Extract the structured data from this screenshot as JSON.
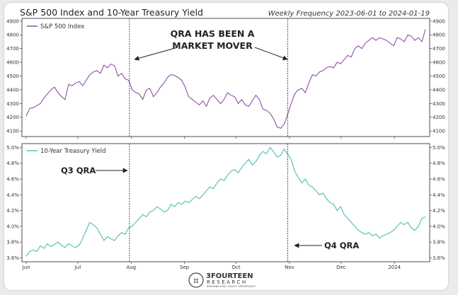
{
  "header": {
    "title": "S&P 500 Index and 10-Year Treasury Yield",
    "meta": "Weekly Frequency 2023-06-01 to 2024-01-19"
  },
  "colors": {
    "spx": "#8c4fa8",
    "yield": "#4dbdb3",
    "frame": "#222222",
    "annotation": "#222222"
  },
  "chart_data": [
    {
      "type": "line",
      "title": "S&P 500 Index and 10-Year Treasury Yield",
      "panel": "top",
      "series": [
        {
          "name": "S&P 500 Index",
          "values": [
            4210,
            4265,
            4270,
            4285,
            4300,
            4340,
            4370,
            4400,
            4420,
            4380,
            4350,
            4330,
            4440,
            4430,
            4450,
            4460,
            4430,
            4470,
            4510,
            4530,
            4540,
            4520,
            4580,
            4560,
            4588,
            4575,
            4500,
            4520,
            4480,
            4470,
            4400,
            4380,
            4370,
            4330,
            4400,
            4410,
            4350,
            4380,
            4420,
            4450,
            4490,
            4510,
            4505,
            4490,
            4470,
            4420,
            4350,
            4330,
            4310,
            4290,
            4320,
            4280,
            4340,
            4360,
            4330,
            4300,
            4330,
            4380,
            4360,
            4350,
            4300,
            4330,
            4290,
            4280,
            4320,
            4360,
            4330,
            4260,
            4250,
            4230,
            4190,
            4130,
            4120,
            4150,
            4220,
            4300,
            4370,
            4400,
            4410,
            4380,
            4450,
            4510,
            4500,
            4530,
            4540,
            4560,
            4570,
            4560,
            4600,
            4590,
            4620,
            4650,
            4640,
            4700,
            4720,
            4700,
            4740,
            4760,
            4780,
            4760,
            4780,
            4770,
            4760,
            4740,
            4720,
            4780,
            4770,
            4750,
            4800,
            4790,
            4760,
            4780,
            4750,
            4840
          ]
        }
      ],
      "ylim": [
        4060,
        4920
      ],
      "yticks": [
        4100,
        4200,
        4300,
        4400,
        4500,
        4600,
        4700,
        4800,
        4900
      ],
      "legend": "top-left"
    },
    {
      "type": "line",
      "panel": "bottom",
      "series": [
        {
          "name": "10-Year Treasury Yield",
          "values": [
            3.62,
            3.68,
            3.7,
            3.68,
            3.75,
            3.72,
            3.78,
            3.74,
            3.77,
            3.8,
            3.76,
            3.73,
            3.78,
            3.75,
            3.73,
            3.76,
            3.85,
            3.95,
            4.05,
            4.02,
            3.98,
            3.9,
            3.82,
            3.87,
            3.84,
            3.82,
            3.88,
            3.92,
            3.9,
            3.98,
            4.0,
            4.05,
            4.1,
            4.15,
            4.12,
            4.18,
            4.2,
            4.25,
            4.22,
            4.18,
            4.2,
            4.28,
            4.25,
            4.3,
            4.28,
            4.32,
            4.3,
            4.34,
            4.38,
            4.35,
            4.4,
            4.45,
            4.5,
            4.48,
            4.55,
            4.6,
            4.58,
            4.65,
            4.7,
            4.72,
            4.68,
            4.75,
            4.8,
            4.85,
            4.78,
            4.82,
            4.9,
            4.95,
            4.92,
            5.0,
            4.95,
            4.88,
            4.9,
            4.98,
            4.92,
            4.85,
            4.7,
            4.62,
            4.55,
            4.6,
            4.52,
            4.5,
            4.45,
            4.4,
            4.42,
            4.35,
            4.3,
            4.28,
            4.2,
            4.25,
            4.15,
            4.1,
            4.05,
            4.0,
            3.95,
            3.92,
            3.9,
            3.92,
            3.88,
            3.9,
            3.85,
            3.88,
            3.9,
            3.92,
            3.95,
            4.0,
            4.05,
            4.02,
            4.05,
            3.98,
            3.95,
            4.0,
            4.1,
            4.12
          ]
        }
      ],
      "ylim": [
        3.55,
        5.05
      ],
      "yticks": [
        "3.6%",
        "3.8%",
        "4.0%",
        "4.2%",
        "4.4%",
        "4.6%",
        "4.8%",
        "5.0%"
      ],
      "ytick_values": [
        3.6,
        3.8,
        4.0,
        4.2,
        4.4,
        4.6,
        4.8,
        5.0
      ],
      "legend": "top-left"
    }
  ],
  "x_axis": {
    "start": "2023-06-01",
    "end": "2024-01-19",
    "ticks": [
      {
        "label": "Jun",
        "date": "2023-06-01"
      },
      {
        "label": "Jul",
        "date": "2023-07-01"
      },
      {
        "label": "Aug",
        "date": "2023-08-01"
      },
      {
        "label": "Sep",
        "date": "2023-09-01"
      },
      {
        "label": "Oct",
        "date": "2023-10-01"
      },
      {
        "label": "Nov",
        "date": "2023-11-01"
      },
      {
        "label": "Dec",
        "date": "2023-12-01"
      },
      {
        "label": "2024",
        "date": "2024-01-01"
      }
    ]
  },
  "annotations": {
    "qra_line1": "QRA HAS BEEN A",
    "qra_line2": "MARKET MOVER",
    "q3": "Q3 QRA",
    "q4": "Q4 QRA",
    "q3_date": "2023-07-31",
    "q4_date": "2023-10-31"
  },
  "brand": {
    "name_line1": "3FOURTEEN",
    "name_line2": "RESEARCH",
    "tagline": "BRIDGING RISK, EQUITY OPPORTUNITY"
  }
}
